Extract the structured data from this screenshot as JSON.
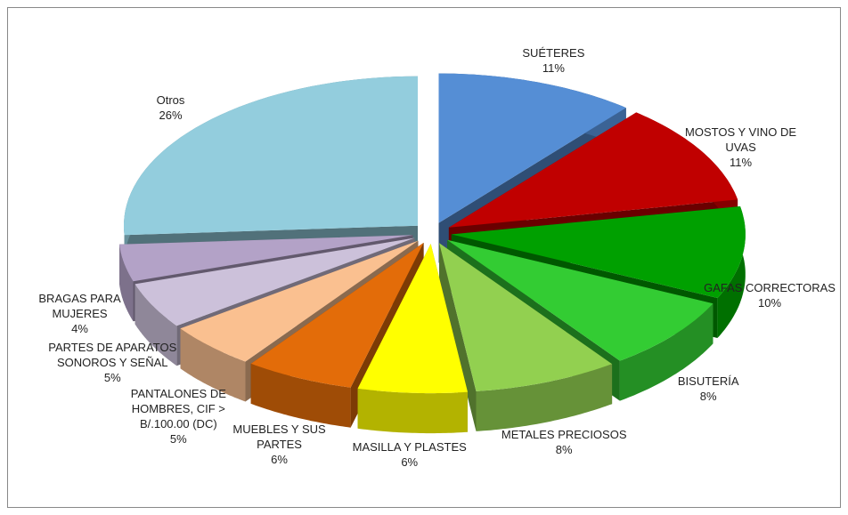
{
  "chart_data": {
    "type": "pie",
    "categories": [
      "SUÉTERES",
      "MOSTOS Y VINO DE UVAS",
      "GAFAS CORRECTORAS",
      "BISUTERÍA",
      "METALES PRECIOSOS",
      "MASILLA Y PLASTES",
      "MUEBLES Y SUS PARTES",
      "PANTALONES DE HOMBRES, CIF > B/.100.00 (DC)",
      "PARTES DE APARATOS SONOROS Y SEÑAL",
      "BRAGAS PARA MUJERES",
      "Otros"
    ],
    "values": [
      11,
      11,
      10,
      8,
      8,
      6,
      6,
      5,
      5,
      4,
      26
    ],
    "value_labels": [
      "11%",
      "11%",
      "10%",
      "8%",
      "8%",
      "6%",
      "6%",
      "5%",
      "5%",
      "4%",
      "26%"
    ],
    "colors": [
      "#558ed5",
      "#c00000",
      "#00a000",
      "#33cc33",
      "#92d050",
      "#ffff00",
      "#e36c09",
      "#fac090",
      "#ccc1da",
      "#b3a2c7",
      "#93cddd"
    ]
  }
}
